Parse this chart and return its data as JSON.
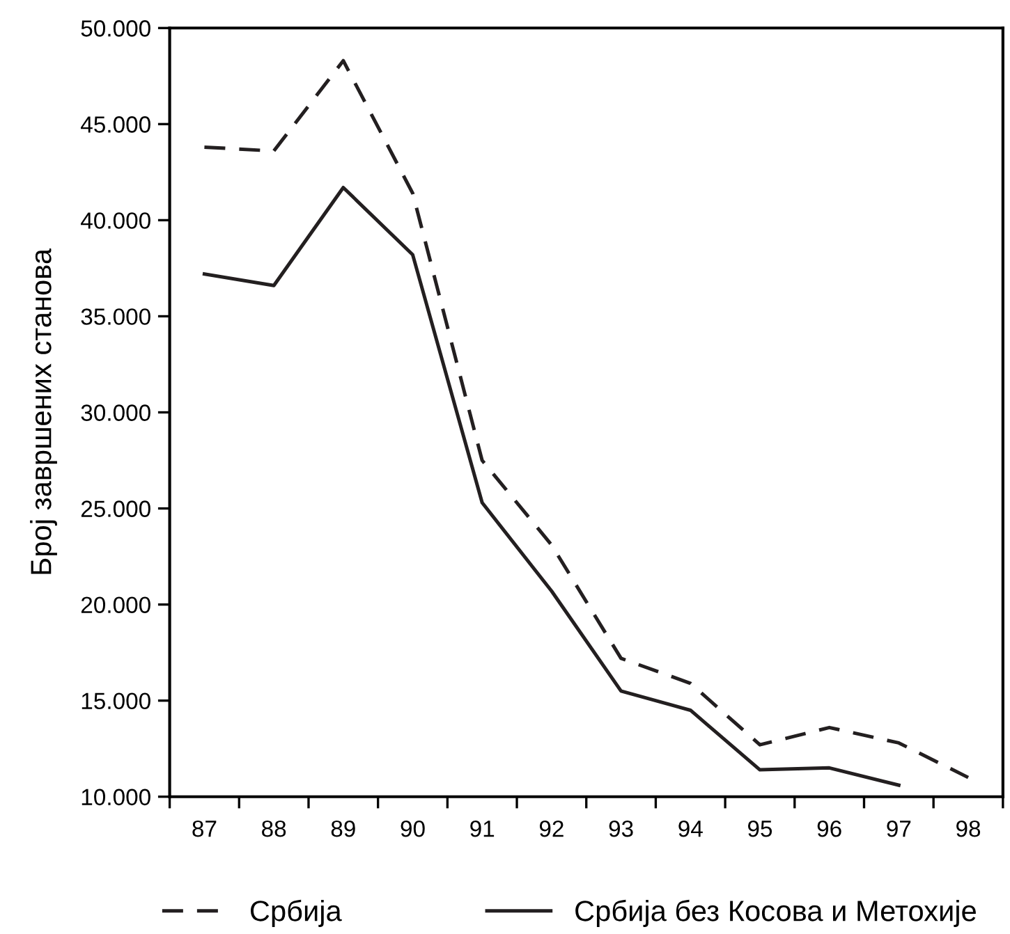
{
  "chart_data": {
    "type": "line",
    "ylabel": "Број завршених станова",
    "categories": [
      "87",
      "88",
      "89",
      "90",
      "91",
      "92",
      "93",
      "94",
      "95",
      "96",
      "97",
      "98"
    ],
    "series": [
      {
        "name": "Србија",
        "color": "#231f20",
        "line_style": "dashed",
        "values": [
          43800,
          43600,
          48300,
          41400,
          27500,
          23100,
          17200,
          15900,
          12700,
          13600,
          12800,
          11000
        ]
      },
      {
        "name": "Србија без Косова и Метохије",
        "color": "#231f20",
        "line_style": "solid",
        "values": [
          37200,
          36600,
          41700,
          38200,
          25300,
          20700,
          15500,
          14500,
          11400,
          11500,
          10600,
          null
        ]
      }
    ],
    "ylim": [
      10000,
      50000
    ],
    "yticks": [
      {
        "value": 10000,
        "label": "10.000"
      },
      {
        "value": 15000,
        "label": "15.000"
      },
      {
        "value": 20000,
        "label": "20.000"
      },
      {
        "value": 25000,
        "label": "25.000"
      },
      {
        "value": 30000,
        "label": "30.000"
      },
      {
        "value": 35000,
        "label": "35.000"
      },
      {
        "value": 40000,
        "label": "40.000"
      },
      {
        "value": 45000,
        "label": "45.000"
      },
      {
        "value": 50000,
        "label": "50.000"
      }
    ],
    "grid": false,
    "legend": "bottom",
    "marker": "none"
  }
}
